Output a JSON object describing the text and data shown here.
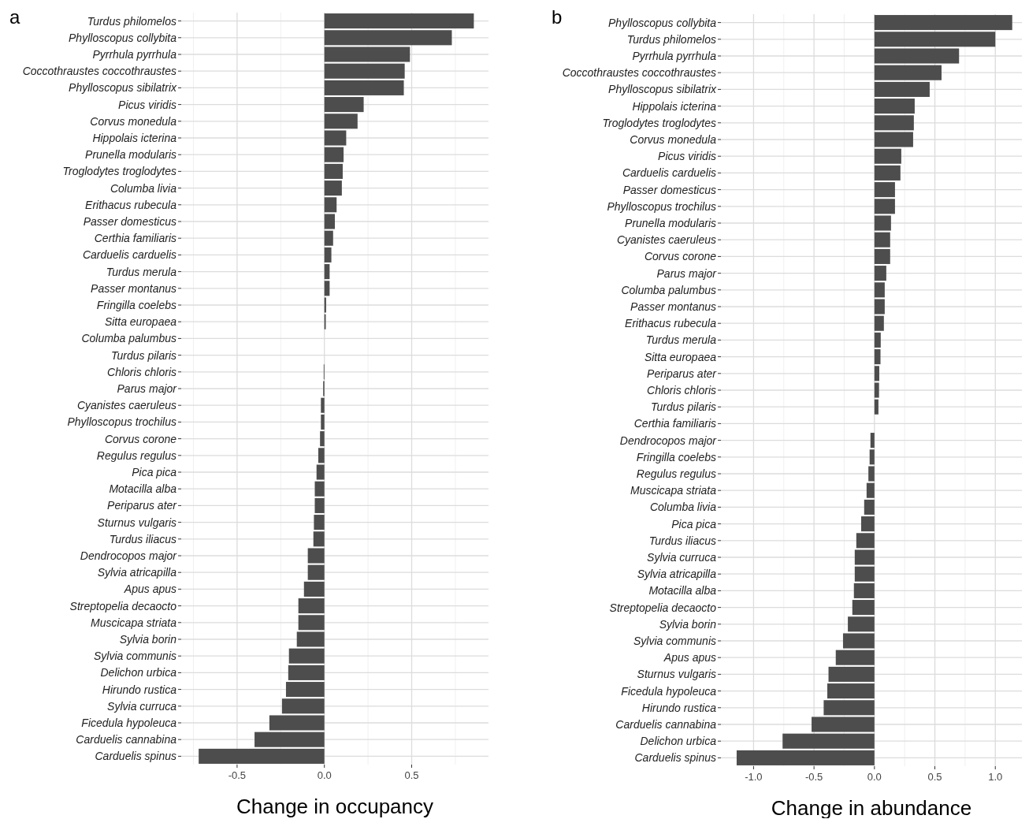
{
  "chart_data": [
    {
      "type": "bar",
      "orientation": "horizontal",
      "title": "a",
      "xlabel": "Change in occupancy",
      "grid": true,
      "color": "#4d4d4d",
      "categories": [
        "Turdus philomelos",
        "Phylloscopus collybita",
        "Pyrrhula pyrrhula",
        "Coccothraustes coccothraustes",
        "Phylloscopus sibilatrix",
        "Picus viridis",
        "Corvus monedula",
        "Hippolais icterina",
        "Prunella modularis",
        "Troglodytes troglodytes",
        "Columba livia",
        "Erithacus rubecula",
        "Passer domesticus",
        "Certhia familiaris",
        "Carduelis carduelis",
        "Turdus merula",
        "Passer montanus",
        "Fringilla coelebs",
        "Sitta europaea",
        "Columba palumbus",
        "Turdus pilaris",
        "Chloris chloris",
        "Parus major",
        "Cyanistes caeruleus",
        "Phylloscopus trochilus",
        "Corvus corone",
        "Regulus regulus",
        "Pica pica",
        "Motacilla alba",
        "Periparus ater",
        "Sturnus vulgaris",
        "Turdus iliacus",
        "Dendrocopos major",
        "Sylvia atricapilla",
        "Apus apus",
        "Streptopelia decaocto",
        "Muscicapa striata",
        "Sylvia borin",
        "Sylvia communis",
        "Delichon urbica",
        "Hirundo rustica",
        "Sylvia curruca",
        "Ficedula hypoleuca",
        "Carduelis cannabina",
        "Carduelis spinus"
      ],
      "values": [
        0.856,
        0.73,
        0.49,
        0.46,
        0.455,
        0.225,
        0.19,
        0.125,
        0.11,
        0.105,
        0.1,
        0.07,
        0.06,
        0.05,
        0.04,
        0.03,
        0.03,
        0.01,
        0.008,
        null,
        null,
        -0.004,
        -0.007,
        -0.02,
        -0.02,
        -0.025,
        -0.035,
        -0.045,
        -0.055,
        -0.055,
        -0.06,
        -0.063,
        -0.095,
        -0.095,
        -0.117,
        -0.149,
        -0.149,
        -0.158,
        -0.203,
        -0.207,
        -0.22,
        -0.243,
        -0.315,
        -0.4,
        -0.72
      ],
      "xlim": [
        -0.82,
        0.94
      ],
      "xticks": [
        {
          "value": -0.75,
          "label": null
        },
        {
          "value": -0.5,
          "label": "-0.5"
        },
        {
          "value": -0.25,
          "label": null
        },
        {
          "value": 0,
          "label": "0.0"
        },
        {
          "value": 0.25,
          "label": null
        },
        {
          "value": 0.5,
          "label": "0.5"
        },
        {
          "value": 0.75,
          "label": null
        }
      ]
    },
    {
      "type": "bar",
      "orientation": "horizontal",
      "title": "b",
      "xlabel": "Change in abundance",
      "grid": true,
      "color": "#4d4d4d",
      "categories": [
        "Phylloscopus collybita",
        "Turdus philomelos",
        "Pyrrhula pyrrhula",
        "Coccothraustes coccothraustes",
        "Phylloscopus sibilatrix",
        "Hippolais icterina",
        "Troglodytes troglodytes",
        "Corvus monedula",
        "Picus viridis",
        "Carduelis carduelis",
        "Passer domesticus",
        "Phylloscopus trochilus",
        "Prunella modularis",
        "Cyanistes caeruleus",
        "Corvus corone",
        "Parus major",
        "Columba palumbus",
        "Passer montanus",
        "Erithacus rubecula",
        "Turdus merula",
        "Sitta europaea",
        "Periparus ater",
        "Chloris chloris",
        "Turdus pilaris",
        "Certhia familiaris",
        "Dendrocopos major",
        "Fringilla coelebs",
        "Regulus regulus",
        "Muscicapa striata",
        "Columba livia",
        "Pica pica",
        "Turdus iliacus",
        "Sylvia curruca",
        "Sylvia atricapilla",
        "Motacilla alba",
        "Streptopelia decaocto",
        "Sylvia borin",
        "Sylvia communis",
        "Apus apus",
        "Sturnus vulgaris",
        "Ficedula hypoleuca",
        "Hirundo rustica",
        "Carduelis cannabina",
        "Delichon urbica",
        "Carduelis spinus"
      ],
      "values": [
        1.14,
        1.0,
        0.7,
        0.555,
        0.457,
        0.333,
        0.326,
        0.32,
        0.222,
        0.215,
        0.17,
        0.17,
        0.137,
        0.13,
        0.13,
        0.098,
        0.085,
        0.085,
        0.078,
        0.052,
        0.05,
        0.04,
        0.038,
        0.033,
        0,
        -0.033,
        -0.04,
        -0.05,
        -0.065,
        -0.085,
        -0.11,
        -0.15,
        -0.163,
        -0.163,
        -0.17,
        -0.183,
        -0.22,
        -0.26,
        -0.32,
        -0.38,
        -0.39,
        -0.42,
        -0.52,
        -0.76,
        -1.14
      ],
      "xlim": [
        -1.27,
        1.22
      ],
      "xticks": [
        {
          "value": -1.0,
          "label": "-1.0"
        },
        {
          "value": -0.75,
          "label": null
        },
        {
          "value": -0.5,
          "label": "-0.5"
        },
        {
          "value": -0.25,
          "label": null
        },
        {
          "value": 0,
          "label": "0.0"
        },
        {
          "value": 0.25,
          "label": null
        },
        {
          "value": 0.5,
          "label": "0.5"
        },
        {
          "value": 0.75,
          "label": null
        },
        {
          "value": 1.0,
          "label": "1.0"
        }
      ]
    }
  ]
}
